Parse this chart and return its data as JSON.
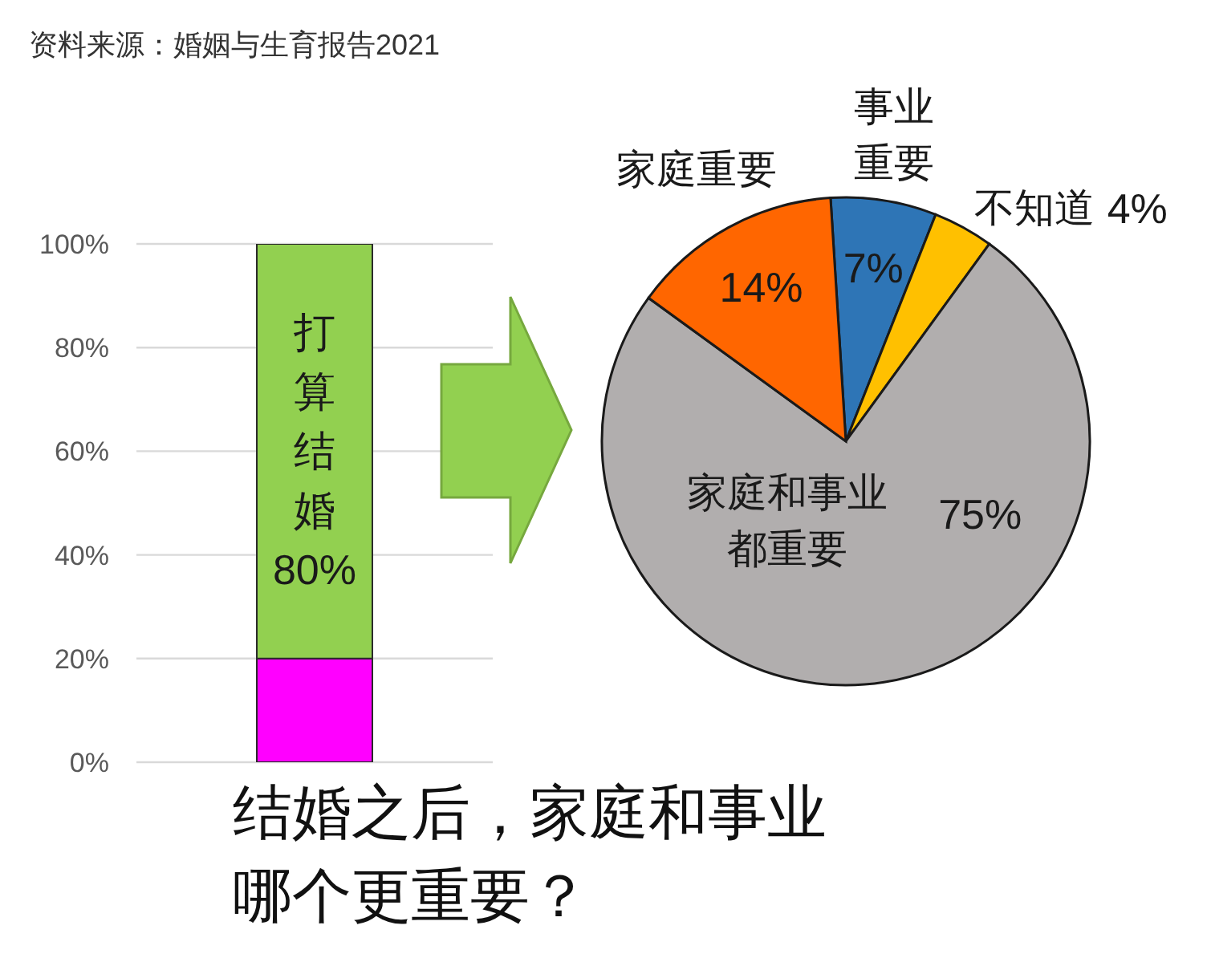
{
  "chart_data": [
    {
      "type": "bar",
      "stacked": true,
      "categories": [
        null
      ],
      "series": [
        {
          "color": "#ff00ff",
          "values": [
            20
          ]
        },
        {
          "name": "打算结婚",
          "color": "#92d050",
          "values": [
            80
          ],
          "value_labels": [
            "80%"
          ]
        }
      ],
      "ylim": [
        0,
        100
      ],
      "yticks": [
        {
          "value": 0,
          "label": "0%"
        },
        {
          "value": 20,
          "label": "20%"
        },
        {
          "value": 40,
          "label": "40%"
        },
        {
          "value": 60,
          "label": "60%"
        },
        {
          "value": 80,
          "label": "80%"
        },
        {
          "value": 100,
          "label": "100%"
        }
      ],
      "grid": "y",
      "tick_labels": "y",
      "annotations": [
        "资料来源：婚姻与生育报告2021"
      ]
    },
    {
      "type": "pie",
      "title": "结婚之后，家庭和事业哪个更重要？",
      "categories": [
        "事业重要",
        "不知道",
        "家庭和事业都重要",
        "家庭重要"
      ],
      "values": [
        7,
        4,
        75,
        14
      ],
      "colors": [
        "#2e75b6",
        "#ffc000",
        "#b1aeae",
        "#ff6600"
      ],
      "value_labels": [
        "7%",
        "4%",
        "75%",
        "14%"
      ]
    }
  ]
}
